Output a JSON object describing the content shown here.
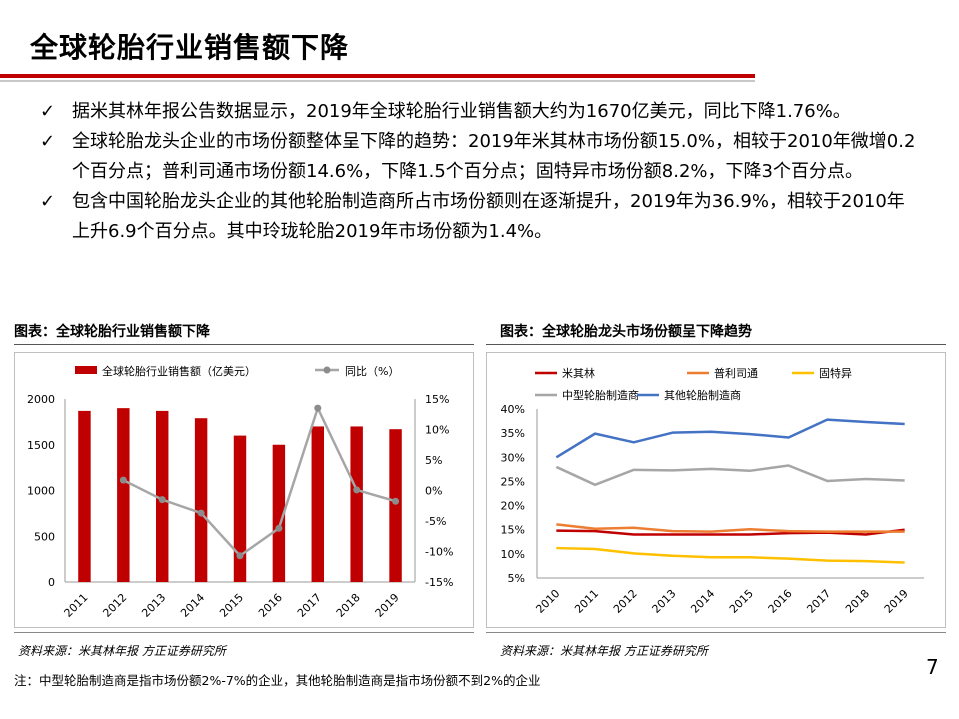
{
  "page": {
    "title": "全球轮胎行业销售额下降",
    "page_number": "7",
    "footnote": "注：中型轮胎制造商是指市场份额2%-7%的企业，其他轮胎制造商是指市场份额不到2%的企业"
  },
  "bullets": [
    "据米其林年报公告数据显示，2019年全球轮胎行业销售额大约为1670亿美元，同比下降1.76%。",
    "全球轮胎龙头企业的市场份额整体呈下降的趋势：2019年米其林市场份额15.0%，相较于2010年微增0.2个百分点；普利司通市场份额14.6%，下降1.5个百分点；固特异市场份额8.2%，下降3个百分点。",
    "包含中国轮胎龙头企业的其他轮胎制造商所占市场份额则在逐渐提升，2019年为36.9%，相较于2010年上升6.9个百分点。其中玲珑轮胎2019年市场份额为1.4%。"
  ],
  "bullet_mark": "✓",
  "left_caption": "图表：全球轮胎行业销售额下降",
  "right_caption": "图表：全球轮胎龙头市场份额呈下降趋势",
  "left_source": "资料来源：米其林年报 方正证券研究所",
  "right_source": "资料来源：米其林年报 方正证券研究所",
  "chart_data": [
    {
      "type": "bar",
      "categories": [
        "2011",
        "2012",
        "2013",
        "2014",
        "2015",
        "2016",
        "2017",
        "2018",
        "2019"
      ],
      "series": [
        {
          "name": "全球轮胎行业销售额（亿美元）",
          "kind": "bar",
          "axis": "left",
          "color": "#c00000",
          "values": [
            1870,
            1900,
            1870,
            1790,
            1600,
            1500,
            1700,
            1700,
            1670
          ]
        },
        {
          "name": "同比（%）",
          "kind": "line",
          "axis": "right",
          "color": "#a6a6a6",
          "values": [
            null,
            1.7,
            -1.5,
            -3.7,
            -10.7,
            -6.2,
            13.5,
            0.1,
            -1.76
          ]
        }
      ],
      "y_left": {
        "range": [
          0,
          2000
        ],
        "ticks": [
          "0",
          "500",
          "1000",
          "1500",
          "2000"
        ]
      },
      "y_right": {
        "range": [
          -15,
          15
        ],
        "ticks": [
          "-15%",
          "-10%",
          "-5%",
          "0%",
          "5%",
          "10%",
          "15%"
        ]
      },
      "legend_position": "top"
    },
    {
      "type": "line",
      "categories": [
        "2010",
        "2011",
        "2012",
        "2013",
        "2014",
        "2015",
        "2016",
        "2017",
        "2018",
        "2019"
      ],
      "series": [
        {
          "name": "米其林",
          "color": "#c00000",
          "values": [
            14.8,
            14.7,
            14.0,
            14.0,
            14.0,
            14.0,
            14.3,
            14.4,
            14.0,
            15.0
          ]
        },
        {
          "name": "普利司通",
          "color": "#ed7d31",
          "values": [
            16.1,
            15.2,
            15.4,
            14.7,
            14.6,
            15.1,
            14.7,
            14.6,
            14.6,
            14.6
          ]
        },
        {
          "name": "固特异",
          "color": "#ffc000",
          "values": [
            11.2,
            11.0,
            10.1,
            9.6,
            9.3,
            9.3,
            9.0,
            8.6,
            8.5,
            8.2
          ]
        },
        {
          "name": "中型轮胎制造商",
          "color": "#a6a6a6",
          "values": [
            28.0,
            24.3,
            27.4,
            27.3,
            27.6,
            27.2,
            28.3,
            25.1,
            25.5,
            25.2
          ]
        },
        {
          "name": "其他轮胎制造商",
          "color": "#4472c4",
          "values": [
            30.0,
            34.9,
            33.1,
            35.1,
            35.3,
            34.8,
            34.1,
            37.8,
            37.3,
            36.9
          ]
        }
      ],
      "y": {
        "range": [
          5,
          40
        ],
        "ticks": [
          "5%",
          "10%",
          "15%",
          "20%",
          "25%",
          "30%",
          "35%",
          "40%"
        ]
      },
      "legend_position": "top"
    }
  ]
}
